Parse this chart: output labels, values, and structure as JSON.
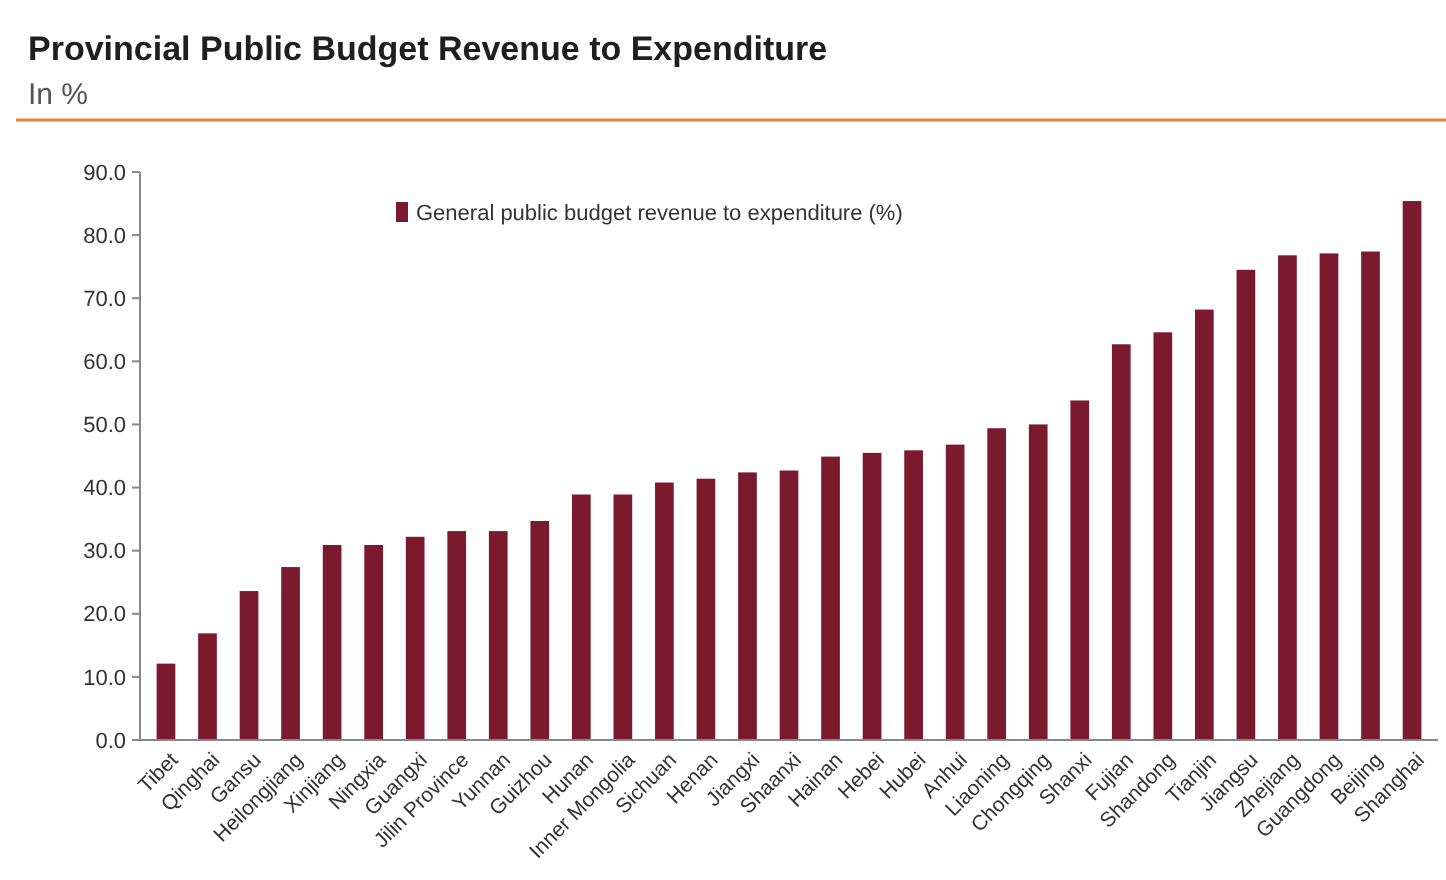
{
  "chart_data": {
    "type": "bar",
    "title": "Provincial Public Budget Revenue to Expenditure",
    "subtitle": "In %",
    "categories": [
      "Tibet",
      "Qinghai",
      "Gansu",
      "Heilongjiang",
      "Xinjiang",
      "Ningxia",
      "Guangxi",
      "Jilin Province",
      "Yunnan",
      "Guizhou",
      "Hunan",
      "Inner Mongolia",
      "Sichuan",
      "Henan",
      "Jiangxi",
      "Shaanxi",
      "Hainan",
      "Hebei",
      "Hubei",
      "Anhui",
      "Liaoning",
      "Chongqing",
      "Shanxi",
      "Fujian",
      "Shandong",
      "Tianjin",
      "Jiangsu",
      "Zhejiang",
      "Guangdong",
      "Beijing",
      "Shanghai"
    ],
    "series": [
      {
        "name": "General public budget revenue to expenditure (%)",
        "color": "#7b1a2e",
        "values": [
          12.1,
          16.9,
          23.6,
          27.4,
          30.9,
          30.9,
          32.2,
          33.1,
          33.1,
          34.7,
          38.9,
          38.9,
          40.8,
          41.4,
          42.4,
          42.7,
          44.9,
          45.5,
          45.9,
          46.8,
          49.4,
          50.0,
          53.8,
          62.7,
          64.6,
          68.2,
          74.5,
          76.8,
          77.1,
          77.4,
          85.4
        ]
      }
    ],
    "ylim": [
      0,
      90
    ],
    "yticks": [
      {
        "value": 0,
        "label": "0.0"
      },
      {
        "value": 10,
        "label": "10.0"
      },
      {
        "value": 20,
        "label": "20.0"
      },
      {
        "value": 30,
        "label": "30.0"
      },
      {
        "value": 40,
        "label": "40.0"
      },
      {
        "value": 50,
        "label": "50.0"
      },
      {
        "value": 60,
        "label": "60.0"
      },
      {
        "value": 70,
        "label": "70.0"
      },
      {
        "value": 80,
        "label": "80.0"
      },
      {
        "value": 90,
        "label": "90.0"
      }
    ],
    "grid": false,
    "legend": "top left"
  }
}
